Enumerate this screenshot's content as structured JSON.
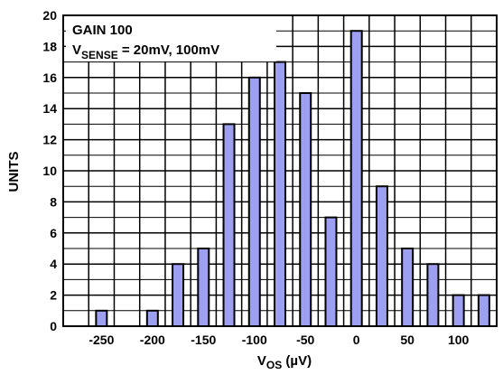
{
  "chart_data": {
    "type": "bar",
    "x": [
      -250,
      -200,
      -175,
      -150,
      -125,
      -100,
      -75,
      -50,
      -25,
      0,
      25,
      50,
      75,
      100,
      125
    ],
    "values": [
      1,
      1,
      4,
      5,
      13,
      16,
      17,
      15,
      7,
      19,
      9,
      5,
      4,
      2,
      2
    ],
    "xlim": [
      -287.5,
      137.5
    ],
    "ylim": [
      0,
      20
    ],
    "xticks": [
      "-250",
      "-200",
      "-150",
      "-100",
      "-50",
      "0",
      "50",
      "100"
    ],
    "yticks": [
      "0",
      "2",
      "4",
      "6",
      "8",
      "10",
      "12",
      "14",
      "16",
      "18",
      "20"
    ],
    "xlabel": {
      "main": "V",
      "sub": "OS",
      "rest": " (µV)"
    },
    "ylabel": "UNITS",
    "annotation": {
      "line1": "GAIN 100",
      "line2_main": "V",
      "line2_sub": "SENSE",
      "line2_rest": " = 20mV, 100mV"
    },
    "grid": true,
    "colors": {
      "bar_fill": "#9d9ff0",
      "bar_stroke": "#000000",
      "grid": "#000000"
    }
  }
}
